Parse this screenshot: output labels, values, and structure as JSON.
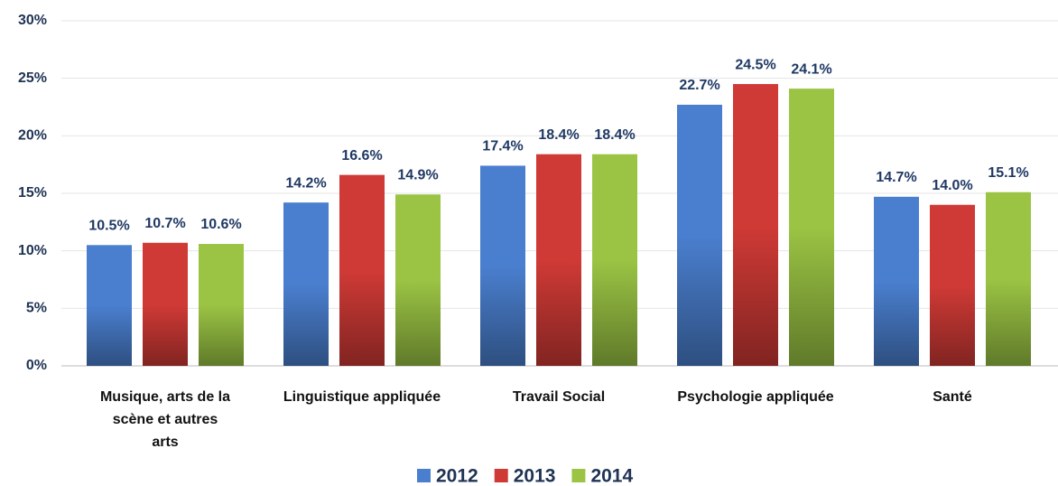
{
  "chart_data": {
    "type": "bar",
    "categories": [
      "Musique, arts de la scène et autres arts",
      "Linguistique appliquée",
      "Travail Social",
      "Psychologie appliquée",
      "Santé"
    ],
    "series": [
      {
        "name": "2012",
        "color": "#4a7fcf",
        "values": [
          10.5,
          14.2,
          17.4,
          22.7,
          14.7
        ],
        "value_labels": [
          "10.5%",
          "14.2%",
          "17.4%",
          "22.7%",
          "14.7%"
        ]
      },
      {
        "name": "2013",
        "color": "#d03a36",
        "values": [
          10.7,
          16.6,
          18.4,
          24.5,
          14.0
        ],
        "value_labels": [
          "10.7%",
          "16.6%",
          "18.4%",
          "24.5%",
          "14.0%"
        ]
      },
      {
        "name": "2014",
        "color": "#9bc444",
        "values": [
          10.6,
          14.9,
          18.4,
          24.1,
          15.1
        ],
        "value_labels": [
          "10.6%",
          "14.9%",
          "18.4%",
          "24.1%",
          "15.1%"
        ]
      }
    ],
    "ylim": [
      0,
      30
    ],
    "yticks": [
      {
        "value": 0,
        "label": "0%"
      },
      {
        "value": 5,
        "label": "5%"
      },
      {
        "value": 10,
        "label": "10%"
      },
      {
        "value": 15,
        "label": "15%"
      },
      {
        "value": 20,
        "label": "20%"
      },
      {
        "value": 25,
        "label": "25%"
      },
      {
        "value": 30,
        "label": "30%"
      }
    ],
    "grid": true,
    "legend": "bottom"
  }
}
